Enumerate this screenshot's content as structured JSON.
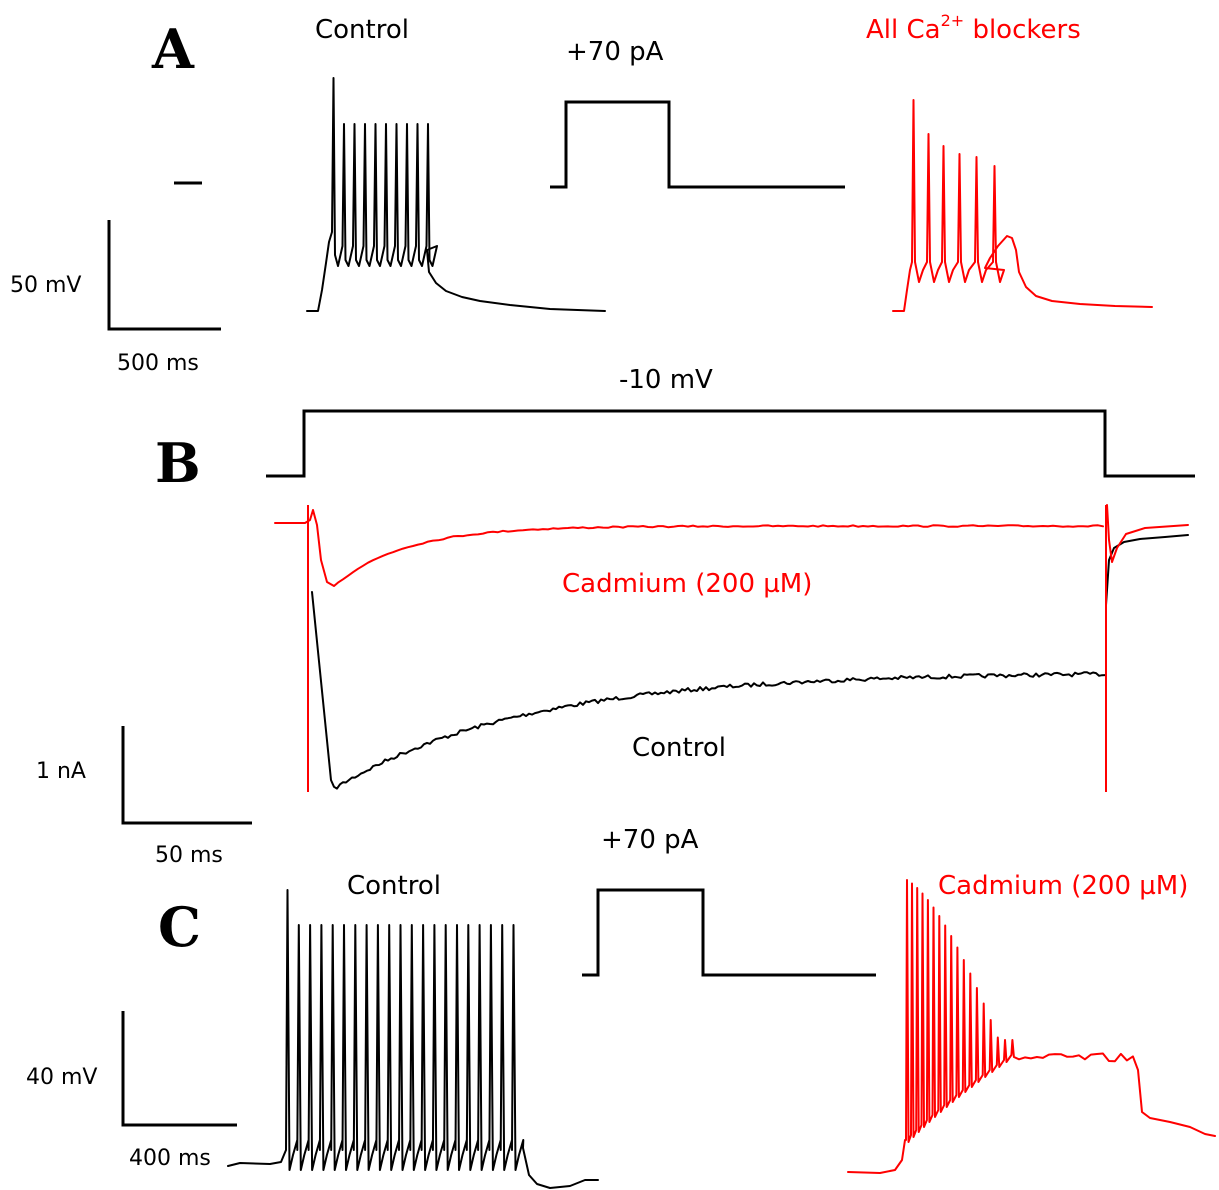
{
  "colors": {
    "control": "#000000",
    "treatment": "#ff0000"
  },
  "chart_data": [
    {
      "panel": "A",
      "type": "line",
      "series": [
        {
          "name": "Control",
          "color": "#000000",
          "spike_count": 10
        },
        {
          "name": "All Ca²⁺ blockers",
          "color": "#ff0000",
          "spike_count": 5
        }
      ],
      "stimulus": "+70 pA",
      "scale_bar": {
        "y": "50 mV",
        "x": "500 ms"
      }
    },
    {
      "panel": "B",
      "type": "line",
      "series": [
        {
          "name": "Control",
          "color": "#000000"
        },
        {
          "name": "Cadmium (200 µM)",
          "color": "#ff0000"
        }
      ],
      "stimulus": "-10 mV",
      "scale_bar": {
        "y": "1 nA",
        "x": "50 ms"
      }
    },
    {
      "panel": "C",
      "type": "line",
      "series": [
        {
          "name": "Control",
          "color": "#000000",
          "spike_count": 21
        },
        {
          "name": "Cadmium (200 µM)",
          "color": "#ff0000",
          "spike_count": 18
        }
      ],
      "stimulus": "+70 pA",
      "scale_bar": {
        "y": "40 mV",
        "x": "400 ms"
      }
    }
  ],
  "panels": {
    "a": {
      "letter": "A",
      "control_label": "Control",
      "stim_label": "+70 pA",
      "blocker_main": "All Ca",
      "blocker_sup": "2+",
      "blocker_tail": " blockers",
      "y_scale": "50 mV",
      "x_scale": "500 ms"
    },
    "b": {
      "letter": "B",
      "stim_label": "-10 mV",
      "cd_label": "Cadmium (200 µM)",
      "control_label": "Control",
      "y_scale": "1 nA",
      "x_scale": "50 ms"
    },
    "c": {
      "letter": "C",
      "control_label": "Control",
      "stim_label": "+70 pA",
      "cd_label": "Cadmium (200 µM)",
      "y_scale": "40 mV",
      "x_scale": "400 ms"
    }
  }
}
